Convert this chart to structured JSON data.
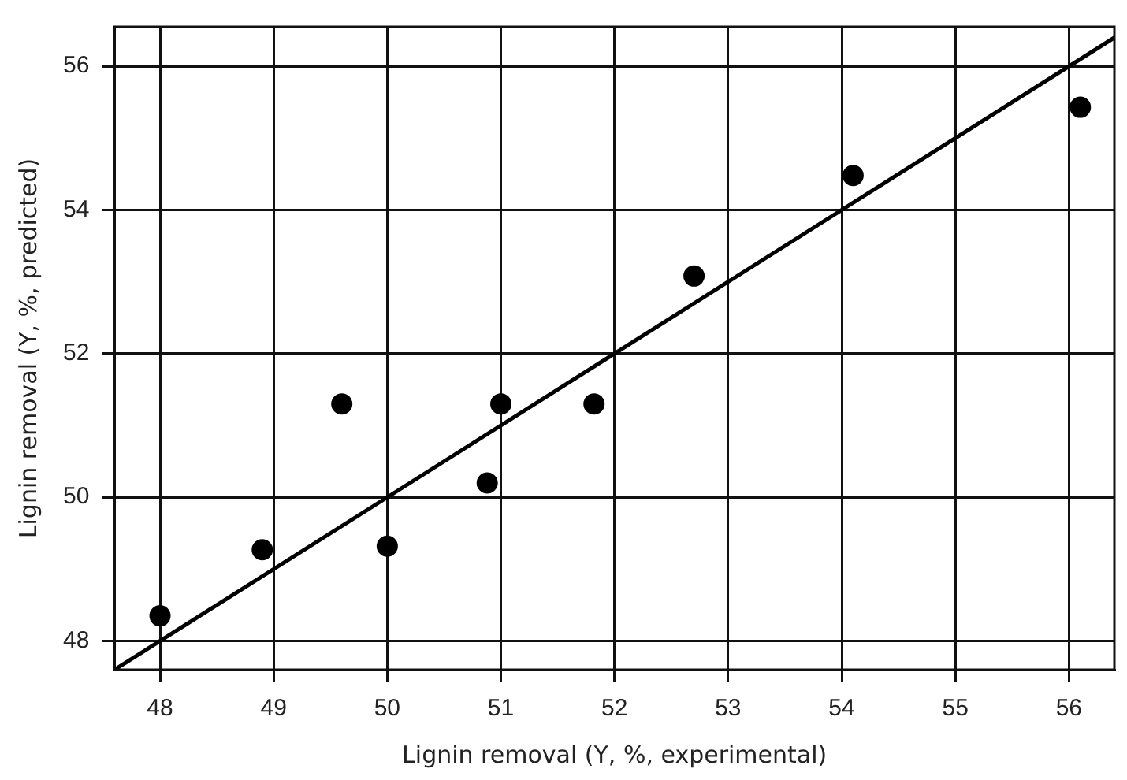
{
  "chart_data": {
    "type": "scatter",
    "xlabel": "Lignin removal (Y, %, experimental)",
    "ylabel": "Lignin removal (Y, %, predicted)",
    "xlim": [
      47.6,
      56.4
    ],
    "xticks": [
      48,
      49,
      50,
      51,
      52,
      53,
      54,
      55,
      56
    ],
    "ylim": [
      47.6,
      56.55
    ],
    "yticks": [
      48,
      50,
      52,
      54,
      56
    ],
    "grid": true,
    "marker": "circle",
    "series": [
      {
        "type": "scatter",
        "color": "#000000",
        "x": [
          48,
          48.9,
          49.6,
          50,
          50.88,
          51,
          51.82,
          52.7,
          54.1,
          56.1
        ],
        "values": [
          48.35,
          49.27,
          51.3,
          49.32,
          50.2,
          51.3,
          51.3,
          53.08,
          54.48,
          55.43
        ]
      },
      {
        "type": "line",
        "color": "#000000",
        "x": [
          47.6,
          56.4
        ],
        "values": [
          47.6,
          56.4
        ],
        "marker": "none",
        "line_style": "solid"
      }
    ]
  }
}
